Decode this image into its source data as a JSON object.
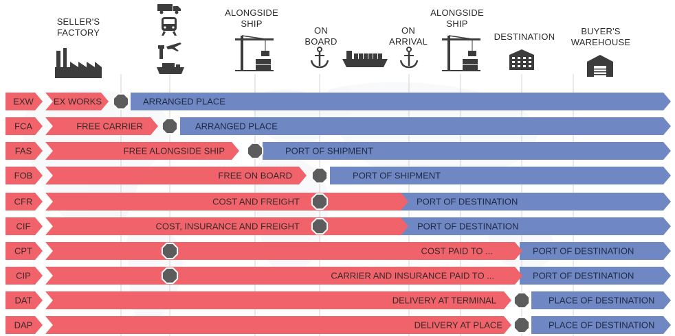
{
  "headers": {
    "sellers_factory": "SELLER'S\nFACTORY",
    "alongside_ship_origin": "ALONGSIDE\nSHIP",
    "on_board": "ON\nBOARD",
    "on_arrival": "ON\nARRIVAL",
    "alongside_ship_destination": "ALONGSIDE\nSHIP",
    "destination": "DESTINATION",
    "buyers_warehouse": "BUYER'S\nWAREHOUSE"
  },
  "icons": [
    "factory-icon",
    "truck-icon",
    "train-icon",
    "airplane-icon",
    "ship-icon",
    "crane-icon",
    "anchor-icon",
    "cargo-ship-icon",
    "anchor-icon",
    "crane-icon",
    "building-icon",
    "warehouse-icon"
  ],
  "colors": {
    "seller_red": "#f1636b",
    "buyer_blue": "#6f87c3",
    "transfer_grey": "#5c5c5c",
    "guide_line": "#d3d3d3"
  },
  "rows": [
    {
      "code": "EXW",
      "seller": "EX WORKS",
      "buyer": "ARRANGED PLACE"
    },
    {
      "code": "FCA",
      "seller": "FREE CARRIER",
      "buyer": "ARRANGED PLACE"
    },
    {
      "code": "FAS",
      "seller": "FREE ALONGSIDE SHIP",
      "buyer": "PORT OF SHIPMENT"
    },
    {
      "code": "FOB",
      "seller": "FREE ON BOARD",
      "buyer": "PORT OF SHIPMENT"
    },
    {
      "code": "CFR",
      "seller": "COST AND FREIGHT",
      "buyer": "PORT OF DESTINATION"
    },
    {
      "code": "CIF",
      "seller": "COST, INSURANCE AND FREIGHT",
      "buyer": "PORT OF DESTINATION"
    },
    {
      "code": "CPT",
      "seller": "COST PAID TO ...",
      "buyer": "PORT OF DESTINATION"
    },
    {
      "code": "CIP",
      "seller": "CARRIER AND INSURANCE PAID TO ...",
      "buyer": "PORT OF DESTINATION"
    },
    {
      "code": "DAT",
      "seller": "DELIVERY AT TERMINAL",
      "buyer": "PLACE OF DESTINATION"
    },
    {
      "code": "DAP",
      "seller": "DELIVERY AT PLACE",
      "buyer": "PLACE OF DESTINATION"
    }
  ]
}
